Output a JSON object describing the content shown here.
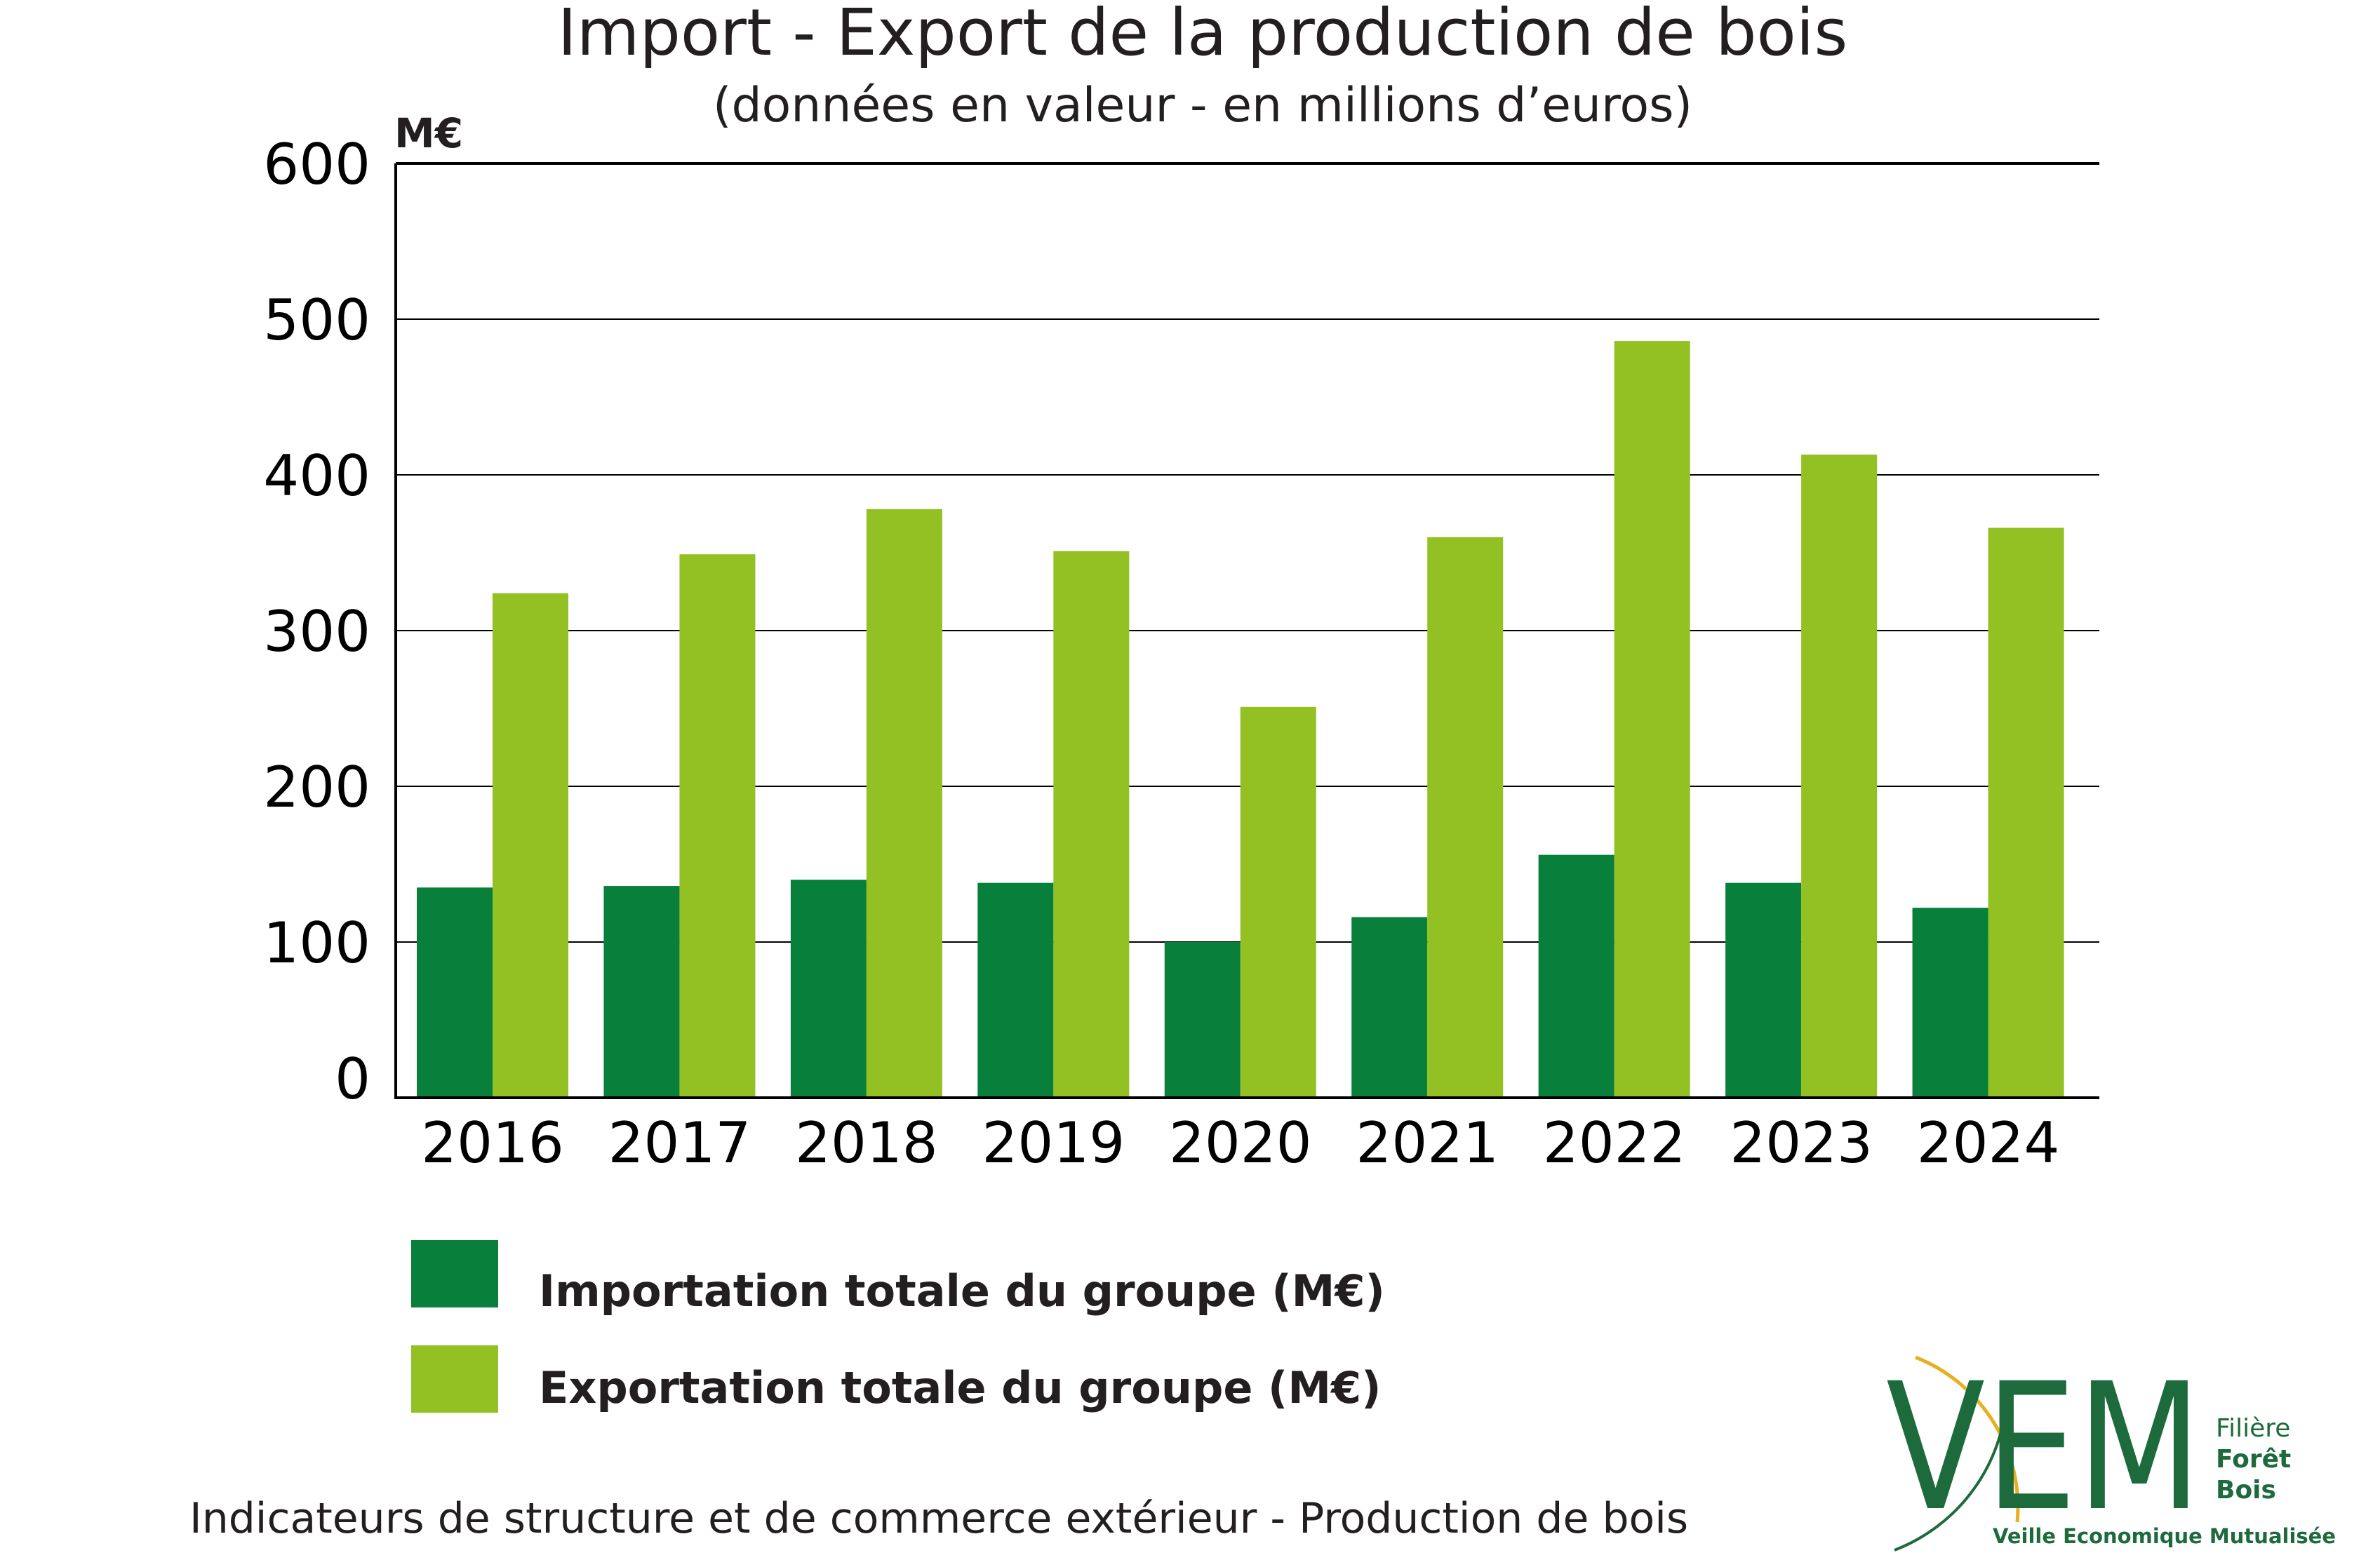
{
  "chart_data": {
    "type": "bar",
    "title": "Import - Export de la production de bois",
    "subtitle": "(données en valeur - en millions d’euros)",
    "ylabel": "M€",
    "xlabel": "",
    "categories": [
      "2016",
      "2017",
      "2018",
      "2019",
      "2020",
      "2021",
      "2022",
      "2023",
      "2024"
    ],
    "series": [
      {
        "name": "Importation totale du groupe (M€)",
        "color": "#087f3a",
        "values": [
          135,
          136,
          140,
          138,
          100,
          116,
          156,
          138,
          122
        ]
      },
      {
        "name": "Exportation totale du groupe (M€)",
        "color": "#93c023",
        "values": [
          324,
          349,
          378,
          351,
          251,
          360,
          486,
          413,
          366
        ]
      }
    ],
    "ylim": [
      0,
      600
    ],
    "yticks": [
      "0",
      "100",
      "200",
      "300",
      "400",
      "500",
      "600"
    ],
    "grid": true,
    "legend_position": "bottom-left"
  },
  "footer": "Indicateurs de structure et de commerce extérieur - Production de bois",
  "logo": {
    "letters": "VEM",
    "line1": "Filière",
    "line2": "Forêt",
    "line3": "Bois",
    "tagline": "Veille Economique Mutualisée"
  },
  "colors": {
    "import": "#087f3a",
    "export": "#93c023",
    "logo_green": "#1d6b3c",
    "logo_arc": "#e8b020"
  }
}
